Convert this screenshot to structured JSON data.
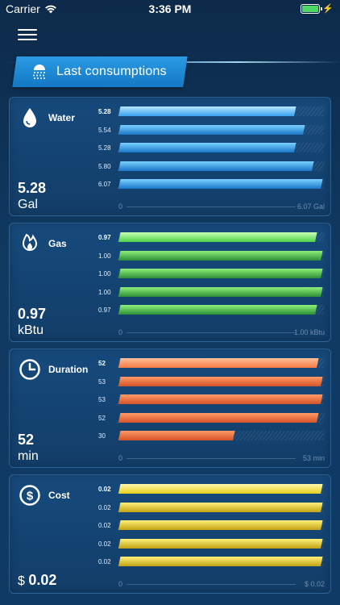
{
  "status": {
    "carrier": "Carrier",
    "time": "3:36 PM"
  },
  "header": {
    "title": "Last consumptions",
    "icon": "shower-icon"
  },
  "colors": {
    "water": [
      "#7ad0ff",
      "#1a76c8"
    ],
    "gas": [
      "#8df07a",
      "#2c8e35"
    ],
    "duration": [
      "#ff9a66",
      "#d4532a"
    ],
    "cost": [
      "#fff07a",
      "#c4a214"
    ],
    "water_current": [
      "#b6e6ff",
      "#38a2ef"
    ],
    "gas_current": [
      "#c8ffb4",
      "#4ed14a"
    ],
    "duration_current": [
      "#ffc09a",
      "#f77a45"
    ],
    "cost_current": [
      "#fff8b0",
      "#e8d01a"
    ]
  },
  "cards": [
    {
      "key": "water",
      "name": "Water",
      "icon": "water-drop-icon",
      "value": "5.28",
      "unit": "Gal",
      "axis_min": "0",
      "axis_max": "6.07 Gal",
      "max": 6.07,
      "bars": [
        {
          "label": "5.28",
          "value": 5.28,
          "current": true
        },
        {
          "label": "5.54",
          "value": 5.54
        },
        {
          "label": "5.28",
          "value": 5.28
        },
        {
          "label": "5.80",
          "value": 5.8
        },
        {
          "label": "6.07",
          "value": 6.07
        }
      ]
    },
    {
      "key": "gas",
      "name": "Gas",
      "icon": "flame-icon",
      "value": "0.97",
      "unit": "kBtu",
      "axis_min": "0",
      "axis_max": "1.00 kBtu",
      "max": 1.0,
      "bars": [
        {
          "label": "0.97",
          "value": 0.97,
          "current": true
        },
        {
          "label": "1.00",
          "value": 1.0
        },
        {
          "label": "1.00",
          "value": 1.0
        },
        {
          "label": "1.00",
          "value": 1.0
        },
        {
          "label": "0.97",
          "value": 0.97
        }
      ]
    },
    {
      "key": "duration",
      "name": "Duration",
      "icon": "clock-icon",
      "value": "52",
      "unit": "min",
      "axis_min": "0",
      "axis_max": "53 min",
      "max": 53,
      "bars": [
        {
          "label": "52",
          "value": 52,
          "current": true
        },
        {
          "label": "53",
          "value": 53
        },
        {
          "label": "53",
          "value": 53
        },
        {
          "label": "52",
          "value": 52
        },
        {
          "label": "30",
          "value": 30
        }
      ]
    },
    {
      "key": "cost",
      "name": "Cost",
      "icon": "dollar-icon",
      "value_prefix": "$",
      "value": "0.02",
      "axis_min": "0",
      "axis_max": "$ 0.02",
      "max": 0.02,
      "bars": [
        {
          "label": "0.02",
          "value": 0.02,
          "current": true
        },
        {
          "label": "0.02",
          "value": 0.02
        },
        {
          "label": "0.02",
          "value": 0.02
        },
        {
          "label": "0.02",
          "value": 0.02
        },
        {
          "label": "0.02",
          "value": 0.02
        }
      ]
    }
  ]
}
